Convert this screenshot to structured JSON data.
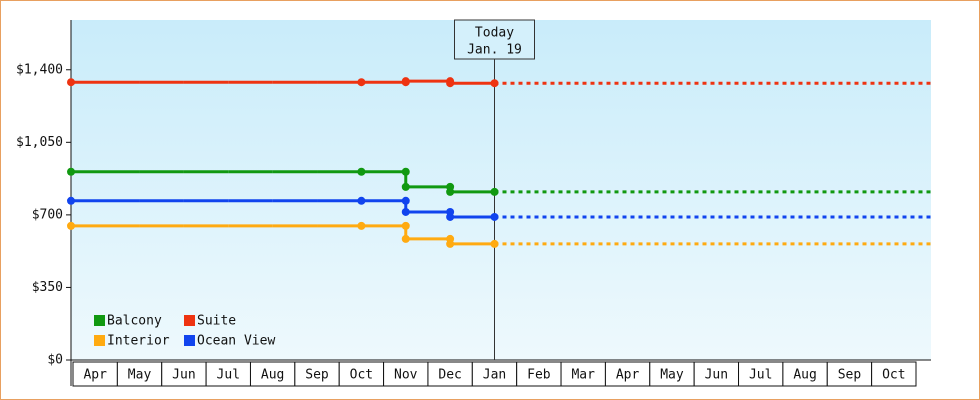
{
  "chart_data": {
    "type": "step",
    "categories": [
      "Apr",
      "May",
      "Jun",
      "Jul",
      "Aug",
      "Sep",
      "Oct",
      "Nov",
      "Dec",
      "Jan",
      "Feb",
      "Mar",
      "Apr",
      "May",
      "Jun",
      "Jul",
      "Aug",
      "Sep",
      "Oct"
    ],
    "series": [
      {
        "name": "Balcony",
        "color": "#119911",
        "values": [
          908,
          908,
          908,
          908,
          908,
          908,
          908,
          835,
          811,
          811,
          null,
          null,
          null,
          null,
          null,
          null,
          null,
          null,
          null
        ]
      },
      {
        "name": "Suite",
        "color": "#ee3311",
        "values": [
          1340,
          1340,
          1340,
          1340,
          1340,
          1340,
          1340,
          1345,
          1335,
          1335,
          null,
          null,
          null,
          null,
          null,
          null,
          null,
          null,
          null
        ]
      },
      {
        "name": "Interior",
        "color": "#ffaa11",
        "values": [
          647,
          647,
          647,
          647,
          647,
          647,
          647,
          584,
          560,
          560,
          null,
          null,
          null,
          null,
          null,
          null,
          null,
          null,
          null
        ]
      },
      {
        "name": "Ocean View",
        "color": "#1144ee",
        "values": [
          768,
          768,
          768,
          768,
          768,
          768,
          768,
          714,
          690,
          690,
          null,
          null,
          null,
          null,
          null,
          null,
          null,
          null,
          null
        ]
      }
    ],
    "annotation": {
      "label": "Today",
      "date": "Jan. 19"
    },
    "ylim": [
      0,
      1640
    ],
    "yticks": [
      {
        "value": 0,
        "label": "$0"
      },
      {
        "value": 350,
        "label": "$350"
      },
      {
        "value": 700,
        "label": "$700"
      },
      {
        "value": 1050,
        "label": "$1,050"
      },
      {
        "value": 1400,
        "label": "$1,400"
      }
    ],
    "legend": "bottom-left"
  }
}
